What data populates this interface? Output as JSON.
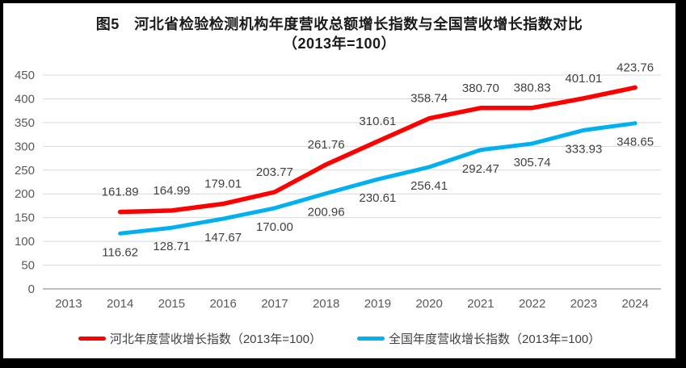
{
  "title": {
    "line1": "图5　河北省检验检测机构年度营收总额增长指数与全国营收增长指数对比",
    "line2": "（2013年=100）"
  },
  "chart_data": {
    "type": "line",
    "categories": [
      "2013",
      "2014",
      "2015",
      "2016",
      "2017",
      "2018",
      "2019",
      "2020",
      "2021",
      "2022",
      "2023",
      "2024"
    ],
    "series": [
      {
        "name": "河北年度营收增长指数（2013年=100）",
        "color": "#FF0000",
        "label_position": "above",
        "values": [
          null,
          161.89,
          164.99,
          179.01,
          203.77,
          261.76,
          310.61,
          358.74,
          380.7,
          380.83,
          401.01,
          423.76
        ]
      },
      {
        "name": "全国年度营收增长指数（2013年=100）",
        "color": "#00B0F0",
        "label_position": "below",
        "values": [
          null,
          116.62,
          128.71,
          147.67,
          170.0,
          200.96,
          230.61,
          256.41,
          292.47,
          305.74,
          333.93,
          348.65
        ]
      }
    ],
    "title": "图5　河北省检验检测机构年度营收总额增长指数与全国营收增长指数对比（2013年=100）",
    "xlabel": "",
    "ylabel": "",
    "ylim": [
      0,
      450
    ],
    "ytick_step": 50,
    "yticks": [
      0,
      50,
      100,
      150,
      200,
      250,
      300,
      350,
      400,
      450
    ],
    "grid": true,
    "legend_position": "bottom",
    "label_decimals": 2
  },
  "style": {
    "frame_color": "#000000",
    "background": "#ffffff",
    "gridline_color": "#D9D9D9",
    "axis_line_color": "#BFBFBF",
    "axis_text_color": "#595959",
    "data_label_color": "#404040",
    "title_color": "#1a1a1a"
  }
}
